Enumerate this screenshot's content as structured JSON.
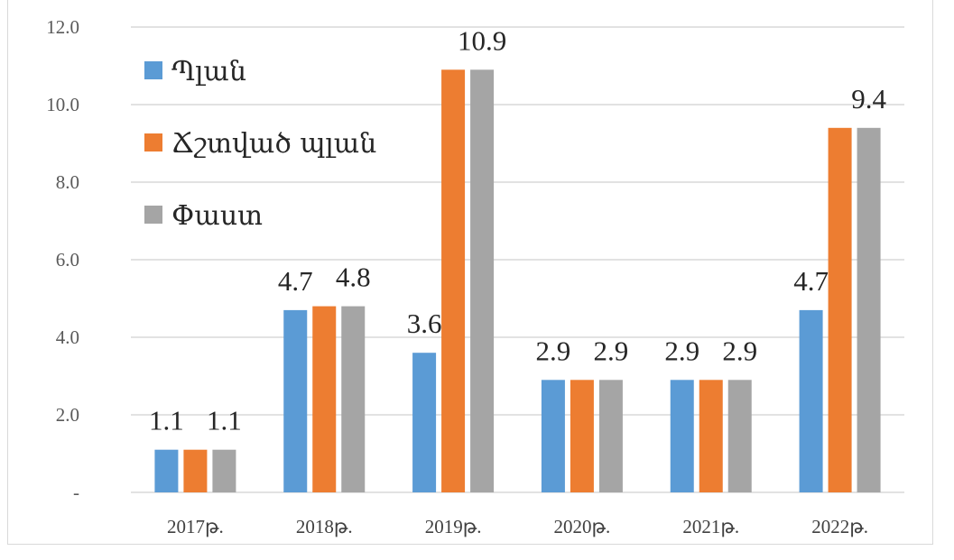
{
  "chart_data": {
    "type": "bar",
    "categories": [
      "2017թ.",
      "2018թ.",
      "2019թ.",
      "2020թ.",
      "2021թ.",
      "2022թ."
    ],
    "series": [
      {
        "name": "Պլան",
        "values": [
          1.1,
          4.7,
          3.6,
          2.9,
          2.9,
          4.7
        ],
        "color": "#5b9bd5",
        "data_labels": [
          "1.1",
          "4.7",
          "3.6",
          "2.9",
          "2.9",
          "4.7"
        ]
      },
      {
        "name": "Ճշտված պլան",
        "values": [
          1.1,
          4.8,
          10.9,
          2.9,
          2.9,
          9.4
        ],
        "color": "#ed7d31",
        "data_labels": [
          "",
          "",
          "",
          "",
          "",
          ""
        ]
      },
      {
        "name": "Փաստ",
        "values": [
          1.1,
          4.8,
          10.9,
          2.9,
          2.9,
          9.4
        ],
        "color": "#a5a5a5",
        "data_labels": [
          "1.1",
          "4.8",
          "10.9",
          "2.9",
          "2.9",
          "9.4"
        ]
      }
    ],
    "yticks": [
      "-",
      "2.0",
      "4.0",
      "6.0",
      "8.0",
      "10.0",
      "12.0"
    ],
    "ylim": [
      0,
      12
    ],
    "grid": true,
    "legend_position": "top-left"
  }
}
